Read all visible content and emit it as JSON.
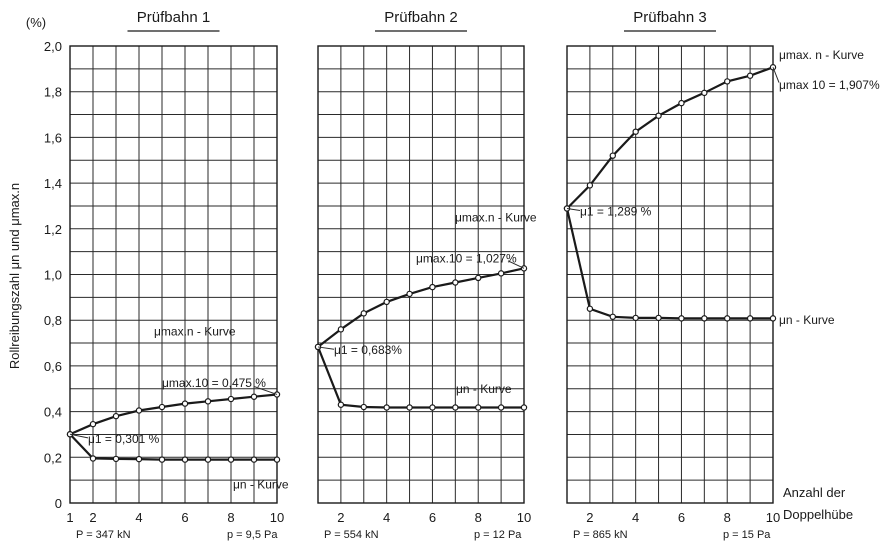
{
  "chart_data": {
    "type": "line",
    "ylabel": "Rollreibungszahl μn und μmax.n",
    "yunit": "(%)",
    "ylim": [
      0,
      2.0
    ],
    "y_ticks": [
      "0",
      "0,2",
      "0,4",
      "0,6",
      "0,8",
      "1,0",
      "1,2",
      "1,4",
      "1,6",
      "1,8",
      "2,0"
    ],
    "xlabel_line1": "Anzahl der",
    "xlabel_line2": "Doppelhübe",
    "grid": true,
    "panels": [
      {
        "title": "Prüfbahn 1",
        "x_ticks": [
          "1",
          "2",
          "4",
          "6",
          "8",
          "10"
        ],
        "x_tick_values": [
          1,
          2,
          4,
          6,
          8,
          10
        ],
        "load": "P = 347 kN",
        "pressure": "p = 9,5 Pa",
        "series": [
          {
            "name": "μmax.n - Kurve",
            "x": [
              1,
              2,
              3,
              4,
              5,
              6,
              7,
              8,
              9,
              10
            ],
            "values": [
              0.301,
              0.345,
              0.38,
              0.405,
              0.42,
              0.435,
              0.445,
              0.455,
              0.465,
              0.475
            ]
          },
          {
            "name": "μn - Kurve",
            "x": [
              1,
              2,
              3,
              4,
              5,
              6,
              7,
              8,
              9,
              10
            ],
            "values": [
              0.301,
              0.195,
              0.193,
              0.192,
              0.19,
              0.19,
              0.19,
              0.19,
              0.19,
              0.19
            ]
          }
        ],
        "annotations": {
          "max_curve": "μmax.n - Kurve",
          "max10": "μmax.10 = 0,475 %",
          "mu1": "μ1 = 0,301 %",
          "n_curve": "μn - Kurve"
        }
      },
      {
        "title": "Prüfbahn 2",
        "x_ticks": [
          "2",
          "4",
          "6",
          "8",
          "10"
        ],
        "x_tick_values": [
          2,
          4,
          6,
          8,
          10
        ],
        "load": "P = 554 kN",
        "pressure": "p = 12 Pa",
        "series": [
          {
            "name": "μmax.n - Kurve",
            "x": [
              1,
              2,
              3,
              4,
              5,
              6,
              7,
              8,
              9,
              10
            ],
            "values": [
              0.683,
              0.76,
              0.83,
              0.88,
              0.915,
              0.945,
              0.965,
              0.985,
              1.005,
              1.027
            ]
          },
          {
            "name": "μn - Kurve",
            "x": [
              1,
              2,
              3,
              4,
              5,
              6,
              7,
              8,
              9,
              10
            ],
            "values": [
              0.683,
              0.43,
              0.42,
              0.418,
              0.418,
              0.418,
              0.418,
              0.418,
              0.418,
              0.418
            ]
          }
        ],
        "annotations": {
          "max_curve": "μmax.n - Kurve",
          "max10": "μmax.10 = 1,027%",
          "mu1": "μ1 = 0,683%",
          "n_curve": "μn - Kurve"
        }
      },
      {
        "title": "Prüfbahn 3",
        "x_ticks": [
          "2",
          "4",
          "6",
          "8",
          "10"
        ],
        "x_tick_values": [
          2,
          4,
          6,
          8,
          10
        ],
        "load": "P = 865 kN",
        "pressure": "p = 15 Pa",
        "series": [
          {
            "name": "μmax. n - Kurve",
            "x": [
              1,
              2,
              3,
              4,
              5,
              6,
              7,
              8,
              9,
              10
            ],
            "values": [
              1.289,
              1.39,
              1.52,
              1.625,
              1.695,
              1.75,
              1.795,
              1.845,
              1.87,
              1.907
            ]
          },
          {
            "name": "μn - Kurve",
            "x": [
              1,
              2,
              3,
              4,
              5,
              6,
              7,
              8,
              9,
              10
            ],
            "values": [
              1.289,
              0.85,
              0.815,
              0.81,
              0.81,
              0.808,
              0.808,
              0.808,
              0.808,
              0.808
            ]
          }
        ],
        "annotations": {
          "max_curve": "μmax. n - Kurve",
          "max10": "μmax 10 = 1,907%",
          "mu1": "μ1 = 1,289 %",
          "n_curve": "μn - Kurve"
        }
      }
    ]
  }
}
